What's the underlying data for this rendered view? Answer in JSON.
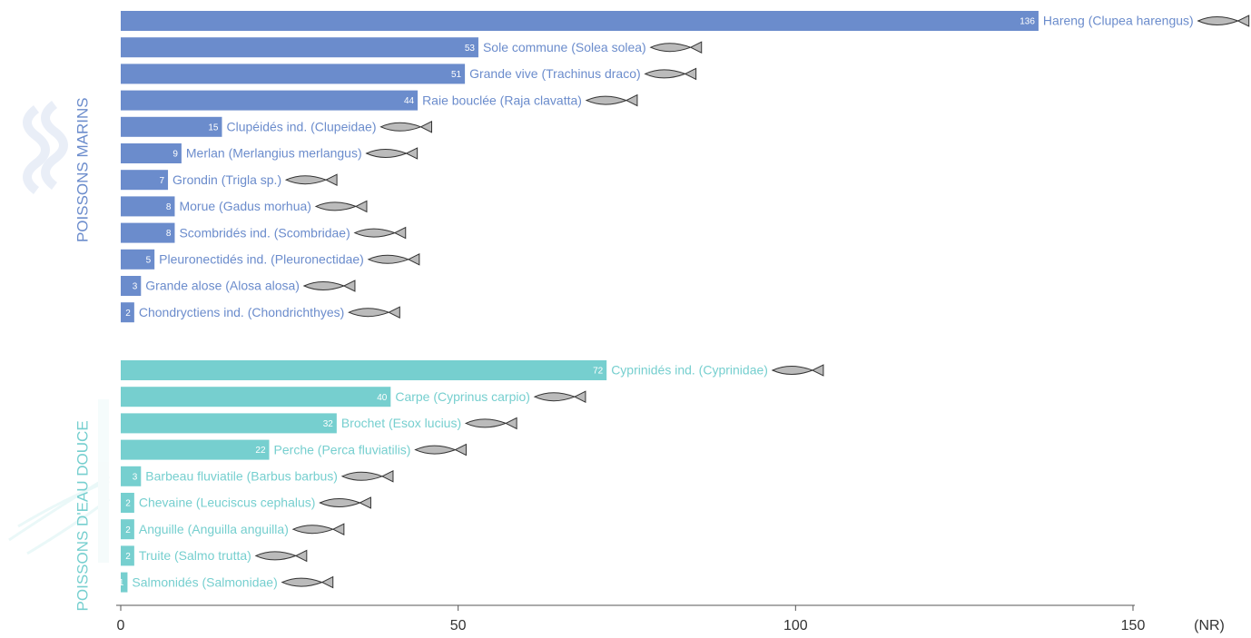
{
  "chart_data": {
    "type": "bar",
    "orientation": "horizontal",
    "x_label": "(NR)",
    "xlim": [
      0,
      150
    ],
    "xticks": [
      0,
      50,
      100,
      150
    ],
    "series": [
      {
        "name": "POISSONS MARINS",
        "color": "#6b8ccc",
        "categories": [
          "Hareng (Clupea harengus)",
          "Sole commune (Solea solea)",
          "Grande vive (Trachinus draco)",
          "Raie bouclée (Raja clavatta)",
          "Clupéidés ind. (Clupeidae)",
          "Merlan (Merlangius merlangus)",
          "Grondin (Trigla sp.)",
          "Morue (Gadus morhua)",
          "Scombridés ind. (Scombridae)",
          "Pleuronectidés ind. (Pleuronectidae)",
          "Grande alose (Alosa alosa)",
          "Chondryctiens ind. (Chondrichthyes)"
        ],
        "values": [
          136,
          53,
          51,
          44,
          15,
          9,
          7,
          8,
          8,
          5,
          3,
          2
        ]
      },
      {
        "name": "POISSONS D'EAU DOUCE",
        "color": "#76cfcf",
        "categories": [
          "Cyprinidés ind. (Cyprinidae)",
          "Carpe (Cyprinus carpio)",
          "Brochet (Esox lucius)",
          "Perche (Perca fluviatilis)",
          "Barbeau fluviatile (Barbus barbus)",
          "Chevaine (Leuciscus cephalus)",
          "Anguille (Anguilla anguilla)",
          "Truite (Salmo trutta)",
          "Salmonidés (Salmonidae)"
        ],
        "values": [
          72,
          40,
          32,
          22,
          3,
          2,
          2,
          2,
          1
        ]
      }
    ]
  }
}
